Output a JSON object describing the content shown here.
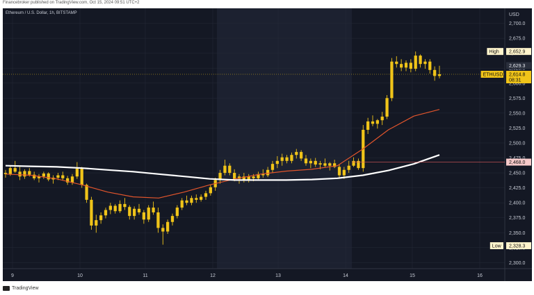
{
  "header": {
    "published_text": "Financebroker published on TradingView.com, Oct 15, 2024 09:51 UTC+2"
  },
  "chart_title": "Ethereum / U.S. Dollar, 1h, BITSTAMP",
  "footer": {
    "brand": "TradingView"
  },
  "colors": {
    "background": "#141824",
    "highlight_band": "#1c2130",
    "candle": "#f0c419",
    "ma_slow": "#ffffff",
    "ma_fast": "#e2552c",
    "grid": "#262b38",
    "axis_text": "#c8ccd6"
  },
  "chart_data": {
    "type": "candlestick",
    "symbol": "ETHUSD",
    "currency": "USD",
    "x_ticks": [
      "9",
      "10",
      "11",
      "12",
      "13",
      "14",
      "15",
      "16"
    ],
    "y_ticks": [
      2300,
      2325,
      2350,
      2375,
      2400,
      2425,
      2450,
      2475,
      2500,
      2525,
      2550,
      2575,
      2600,
      2625,
      2650,
      2675,
      2700
    ],
    "ylim": [
      2290,
      2725
    ],
    "price_labels": [
      {
        "name": "High",
        "value": "2,652.9"
      },
      {
        "name": "",
        "value": "2,629.3"
      },
      {
        "name": "ETHUSD",
        "value": "2,614.8",
        "sub": "08:31"
      },
      {
        "name": "",
        "value": "2,468.0"
      },
      {
        "name": "Low",
        "value": "2,328.3"
      }
    ],
    "candles": [
      [
        2450,
        2455,
        2442,
        2448
      ],
      [
        2448,
        2462,
        2445,
        2458
      ],
      [
        2458,
        2470,
        2450,
        2452
      ],
      [
        2452,
        2460,
        2438,
        2444
      ],
      [
        2444,
        2456,
        2440,
        2453
      ],
      [
        2453,
        2458,
        2444,
        2447
      ],
      [
        2447,
        2452,
        2438,
        2441
      ],
      [
        2441,
        2448,
        2434,
        2444
      ],
      [
        2444,
        2452,
        2440,
        2449
      ],
      [
        2449,
        2451,
        2436,
        2439
      ],
      [
        2439,
        2446,
        2432,
        2442
      ],
      [
        2442,
        2450,
        2438,
        2446
      ],
      [
        2446,
        2452,
        2438,
        2441
      ],
      [
        2441,
        2445,
        2430,
        2434
      ],
      [
        2434,
        2448,
        2430,
        2444
      ],
      [
        2444,
        2468,
        2440,
        2457
      ],
      [
        2457,
        2460,
        2425,
        2430
      ],
      [
        2430,
        2432,
        2400,
        2405
      ],
      [
        2405,
        2410,
        2355,
        2362
      ],
      [
        2362,
        2380,
        2350,
        2371
      ],
      [
        2371,
        2384,
        2365,
        2379
      ],
      [
        2379,
        2392,
        2374,
        2388
      ],
      [
        2388,
        2400,
        2381,
        2395
      ],
      [
        2395,
        2398,
        2382,
        2386
      ],
      [
        2386,
        2404,
        2383,
        2398
      ],
      [
        2398,
        2408,
        2388,
        2393
      ],
      [
        2393,
        2396,
        2372,
        2378
      ],
      [
        2378,
        2394,
        2372,
        2390
      ],
      [
        2390,
        2398,
        2380,
        2384
      ],
      [
        2384,
        2388,
        2365,
        2372
      ],
      [
        2372,
        2396,
        2368,
        2392
      ],
      [
        2392,
        2402,
        2380,
        2384
      ],
      [
        2384,
        2392,
        2350,
        2358
      ],
      [
        2358,
        2364,
        2330,
        2352
      ],
      [
        2352,
        2372,
        2348,
        2368
      ],
      [
        2368,
        2382,
        2362,
        2378
      ],
      [
        2378,
        2396,
        2374,
        2392
      ],
      [
        2392,
        2408,
        2388,
        2404
      ],
      [
        2404,
        2412,
        2396,
        2400
      ],
      [
        2400,
        2412,
        2396,
        2408
      ],
      [
        2408,
        2414,
        2400,
        2405
      ],
      [
        2405,
        2414,
        2402,
        2410
      ],
      [
        2410,
        2420,
        2405,
        2416
      ],
      [
        2416,
        2430,
        2412,
        2426
      ],
      [
        2426,
        2442,
        2420,
        2438
      ],
      [
        2438,
        2455,
        2432,
        2450
      ],
      [
        2450,
        2472,
        2446,
        2462
      ],
      [
        2462,
        2466,
        2446,
        2450
      ],
      [
        2450,
        2456,
        2436,
        2440
      ],
      [
        2440,
        2448,
        2432,
        2444
      ],
      [
        2444,
        2450,
        2434,
        2438
      ],
      [
        2438,
        2448,
        2434,
        2444
      ],
      [
        2444,
        2448,
        2436,
        2441
      ],
      [
        2441,
        2452,
        2438,
        2448
      ],
      [
        2448,
        2456,
        2442,
        2446
      ],
      [
        2446,
        2460,
        2443,
        2455
      ],
      [
        2455,
        2470,
        2450,
        2465
      ],
      [
        2465,
        2478,
        2458,
        2470
      ],
      [
        2470,
        2482,
        2462,
        2476
      ],
      [
        2476,
        2480,
        2466,
        2470
      ],
      [
        2470,
        2484,
        2466,
        2480
      ],
      [
        2480,
        2490,
        2474,
        2485
      ],
      [
        2485,
        2488,
        2470,
        2474
      ],
      [
        2474,
        2480,
        2462,
        2466
      ],
      [
        2466,
        2474,
        2458,
        2470
      ],
      [
        2470,
        2475,
        2460,
        2464
      ],
      [
        2464,
        2470,
        2456,
        2466
      ],
      [
        2466,
        2474,
        2460,
        2462
      ],
      [
        2462,
        2468,
        2454,
        2466
      ],
      [
        2466,
        2472,
        2458,
        2460
      ],
      [
        2460,
        2464,
        2440,
        2446
      ],
      [
        2446,
        2460,
        2440,
        2455
      ],
      [
        2455,
        2470,
        2450,
        2462
      ],
      [
        2462,
        2476,
        2460,
        2470
      ],
      [
        2470,
        2474,
        2455,
        2458
      ],
      [
        2458,
        2530,
        2452,
        2522
      ],
      [
        2522,
        2542,
        2515,
        2536
      ],
      [
        2536,
        2546,
        2528,
        2532
      ],
      [
        2532,
        2540,
        2524,
        2538
      ],
      [
        2538,
        2552,
        2530,
        2544
      ],
      [
        2544,
        2580,
        2540,
        2575
      ],
      [
        2575,
        2642,
        2570,
        2636
      ],
      [
        2636,
        2645,
        2626,
        2632
      ],
      [
        2632,
        2640,
        2620,
        2626
      ],
      [
        2626,
        2638,
        2620,
        2634
      ],
      [
        2634,
        2640,
        2618,
        2624
      ],
      [
        2624,
        2652.9,
        2620,
        2646
      ],
      [
        2646,
        2648,
        2626,
        2632
      ],
      [
        2632,
        2640,
        2624,
        2636
      ],
      [
        2636,
        2640,
        2616,
        2622
      ],
      [
        2622,
        2628,
        2604,
        2612
      ],
      [
        2612,
        2629,
        2608,
        2614.8
      ]
    ],
    "ma_slow": [
      2462,
      2461,
      2460,
      2458,
      2455,
      2452,
      2448,
      2444,
      2440,
      2438,
      2438,
      2438,
      2439,
      2441,
      2446,
      2454,
      2465,
      2480
    ],
    "ma_fast": [
      2448,
      2446,
      2440,
      2430,
      2418,
      2410,
      2408,
      2418,
      2430,
      2440,
      2448,
      2453,
      2456,
      2462,
      2490,
      2522,
      2545,
      2556
    ]
  }
}
